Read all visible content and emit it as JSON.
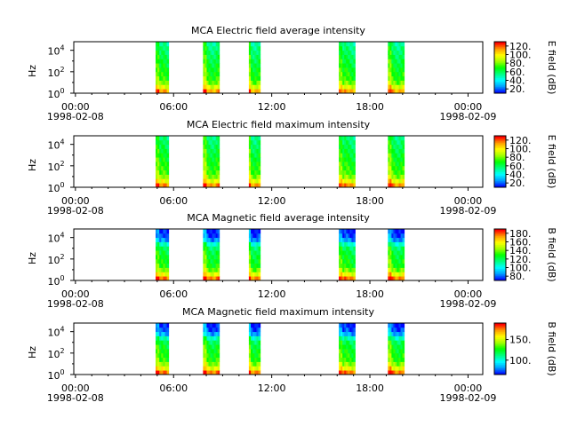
{
  "colorscale": [
    "#0000ff",
    "#00a0ff",
    "#00ffff",
    "#00ff80",
    "#00ff00",
    "#a0ff00",
    "#ffff00",
    "#ffa000",
    "#ff0000"
  ],
  "chart_data": [
    {
      "type": "heatmap",
      "title": "MCA  Electric field average intensity",
      "ylabel": "Hz",
      "colorbar_label": "E field (dB)",
      "colorbar_ticks": [
        "20.",
        "40.",
        "60.",
        "80.",
        "100.",
        "120."
      ],
      "colorbar_tick_values": [
        20,
        40,
        60,
        80,
        100,
        120
      ],
      "color_range": [
        10,
        130
      ],
      "yticks_base": [
        "10",
        "10",
        "10"
      ],
      "yticks_exp": [
        "0",
        "2",
        "4"
      ],
      "ytick_values": [
        0,
        2,
        4
      ],
      "ylim": [
        0,
        4.8
      ],
      "xticks_time": [
        "00:00",
        "06:00",
        "12:00",
        "18:00",
        "00:00"
      ],
      "xticks_hours": [
        0,
        6,
        12,
        18,
        24
      ],
      "xlim": [
        -0.1,
        24.9
      ],
      "date_start": "1998-02-08",
      "date_end": "1998-02-09",
      "segments": [
        [
          4.9,
          5.7
        ],
        [
          7.8,
          8.8
        ],
        [
          10.6,
          11.3
        ],
        [
          16.1,
          17.1
        ],
        [
          19.1,
          20.1
        ]
      ],
      "freq_profile": [
        0.85,
        0.7,
        0.58,
        0.52,
        0.5,
        0.48,
        0.46,
        0.44,
        0.42,
        0.4,
        0.38,
        0.35
      ]
    },
    {
      "type": "heatmap",
      "title": "MCA  Electric field maximum intensity",
      "ylabel": "Hz",
      "colorbar_label": "E field (dB)",
      "colorbar_ticks": [
        "20.",
        "40.",
        "60.",
        "80.",
        "100.",
        "120."
      ],
      "colorbar_tick_values": [
        20,
        40,
        60,
        80,
        100,
        120
      ],
      "color_range": [
        10,
        130
      ],
      "yticks_base": [
        "10",
        "10",
        "10"
      ],
      "yticks_exp": [
        "0",
        "2",
        "4"
      ],
      "ytick_values": [
        0,
        2,
        4
      ],
      "ylim": [
        0,
        4.8
      ],
      "xticks_time": [
        "00:00",
        "06:00",
        "12:00",
        "18:00",
        "00:00"
      ],
      "xticks_hours": [
        0,
        6,
        12,
        18,
        24
      ],
      "xlim": [
        -0.1,
        24.9
      ],
      "date_start": "1998-02-08",
      "date_end": "1998-02-09",
      "segments": [
        [
          4.9,
          5.7
        ],
        [
          7.8,
          8.8
        ],
        [
          10.6,
          11.3
        ],
        [
          16.1,
          17.1
        ],
        [
          19.1,
          20.1
        ]
      ],
      "freq_profile": [
        0.88,
        0.72,
        0.6,
        0.54,
        0.52,
        0.5,
        0.48,
        0.46,
        0.44,
        0.42,
        0.4,
        0.38
      ]
    },
    {
      "type": "heatmap",
      "title": "MCA  Magnetic field average intensity",
      "ylabel": "Hz",
      "colorbar_label": "B field (dB)",
      "colorbar_ticks": [
        "80.",
        "100.",
        "120.",
        "140.",
        "160.",
        "180."
      ],
      "colorbar_tick_values": [
        80,
        100,
        120,
        140,
        160,
        180
      ],
      "color_range": [
        70,
        190
      ],
      "yticks_base": [
        "10",
        "10",
        "10"
      ],
      "yticks_exp": [
        "0",
        "2",
        "4"
      ],
      "ytick_values": [
        0,
        2,
        4
      ],
      "ylim": [
        0,
        4.8
      ],
      "xticks_time": [
        "00:00",
        "06:00",
        "12:00",
        "18:00",
        "00:00"
      ],
      "xticks_hours": [
        0,
        6,
        12,
        18,
        24
      ],
      "xlim": [
        -0.1,
        24.9
      ],
      "date_start": "1998-02-08",
      "date_end": "1998-02-09",
      "segments": [
        [
          4.9,
          5.7
        ],
        [
          7.8,
          8.8
        ],
        [
          10.6,
          11.3
        ],
        [
          16.1,
          17.1
        ],
        [
          19.1,
          20.1
        ]
      ],
      "freq_profile": [
        0.9,
        0.72,
        0.58,
        0.5,
        0.48,
        0.46,
        0.44,
        0.4,
        0.3,
        0.12,
        0.04,
        0.02
      ]
    },
    {
      "type": "heatmap",
      "title": "MCA  Magnetic field maximum intensity",
      "ylabel": "Hz",
      "colorbar_label": "B field (dB)",
      "colorbar_ticks": [
        "100.",
        "150."
      ],
      "colorbar_tick_values": [
        100,
        150
      ],
      "color_range": [
        65,
        190
      ],
      "yticks_base": [
        "10",
        "10",
        "10"
      ],
      "yticks_exp": [
        "0",
        "2",
        "4"
      ],
      "ytick_values": [
        0,
        2,
        4
      ],
      "ylim": [
        0,
        4.8
      ],
      "xticks_time": [
        "00:00",
        "06:00",
        "12:00",
        "18:00",
        "00:00"
      ],
      "xticks_hours": [
        0,
        6,
        12,
        18,
        24
      ],
      "xlim": [
        -0.1,
        24.9
      ],
      "date_start": "1998-02-08",
      "date_end": "1998-02-09",
      "segments": [
        [
          4.9,
          5.7
        ],
        [
          7.8,
          8.8
        ],
        [
          10.6,
          11.3
        ],
        [
          16.1,
          17.1
        ],
        [
          19.1,
          20.1
        ]
      ],
      "freq_profile": [
        0.9,
        0.72,
        0.6,
        0.52,
        0.5,
        0.48,
        0.46,
        0.42,
        0.32,
        0.14,
        0.05,
        0.02
      ]
    }
  ]
}
